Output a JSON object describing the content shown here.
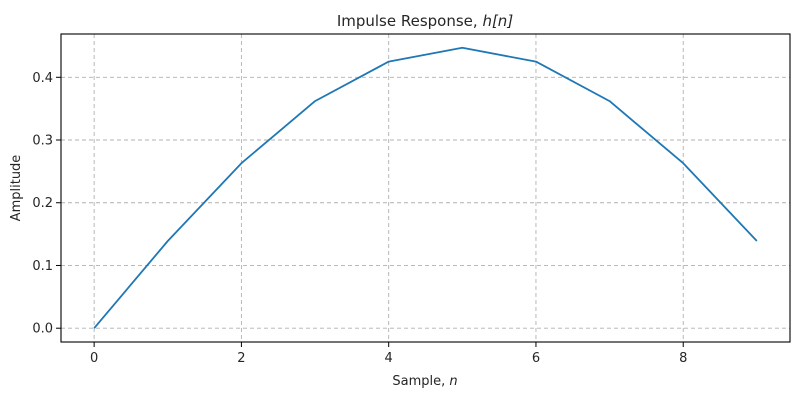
{
  "chart_data": {
    "type": "line",
    "title": "Impulse Response, h[n]",
    "title_parts": {
      "prefix": "Impulse Response, ",
      "math": "h[n]"
    },
    "xlabel": "Sample, n",
    "xlabel_parts": {
      "prefix": "Sample, ",
      "math": "n"
    },
    "ylabel": "Amplitude",
    "x": [
      0,
      1,
      2,
      3,
      4,
      5,
      6,
      7,
      8,
      9
    ],
    "series": [
      {
        "name": "h[n]",
        "color": "#1f77b4",
        "values": [
          0.0,
          0.139,
          0.263,
          0.362,
          0.425,
          0.447,
          0.425,
          0.362,
          0.263,
          0.139
        ]
      }
    ],
    "xticks": [
      0,
      2,
      4,
      6,
      8
    ],
    "xtick_labels": [
      "0",
      "2",
      "4",
      "6",
      "8"
    ],
    "yticks": [
      0.0,
      0.1,
      0.2,
      0.3,
      0.4
    ],
    "ytick_labels": [
      "0.0",
      "0.1",
      "0.2",
      "0.3",
      "0.4"
    ],
    "xlim": [
      -0.45,
      9.45
    ],
    "ylim": [
      -0.022,
      0.469
    ],
    "grid": true,
    "grid_style": "dashed",
    "legend": null
  }
}
